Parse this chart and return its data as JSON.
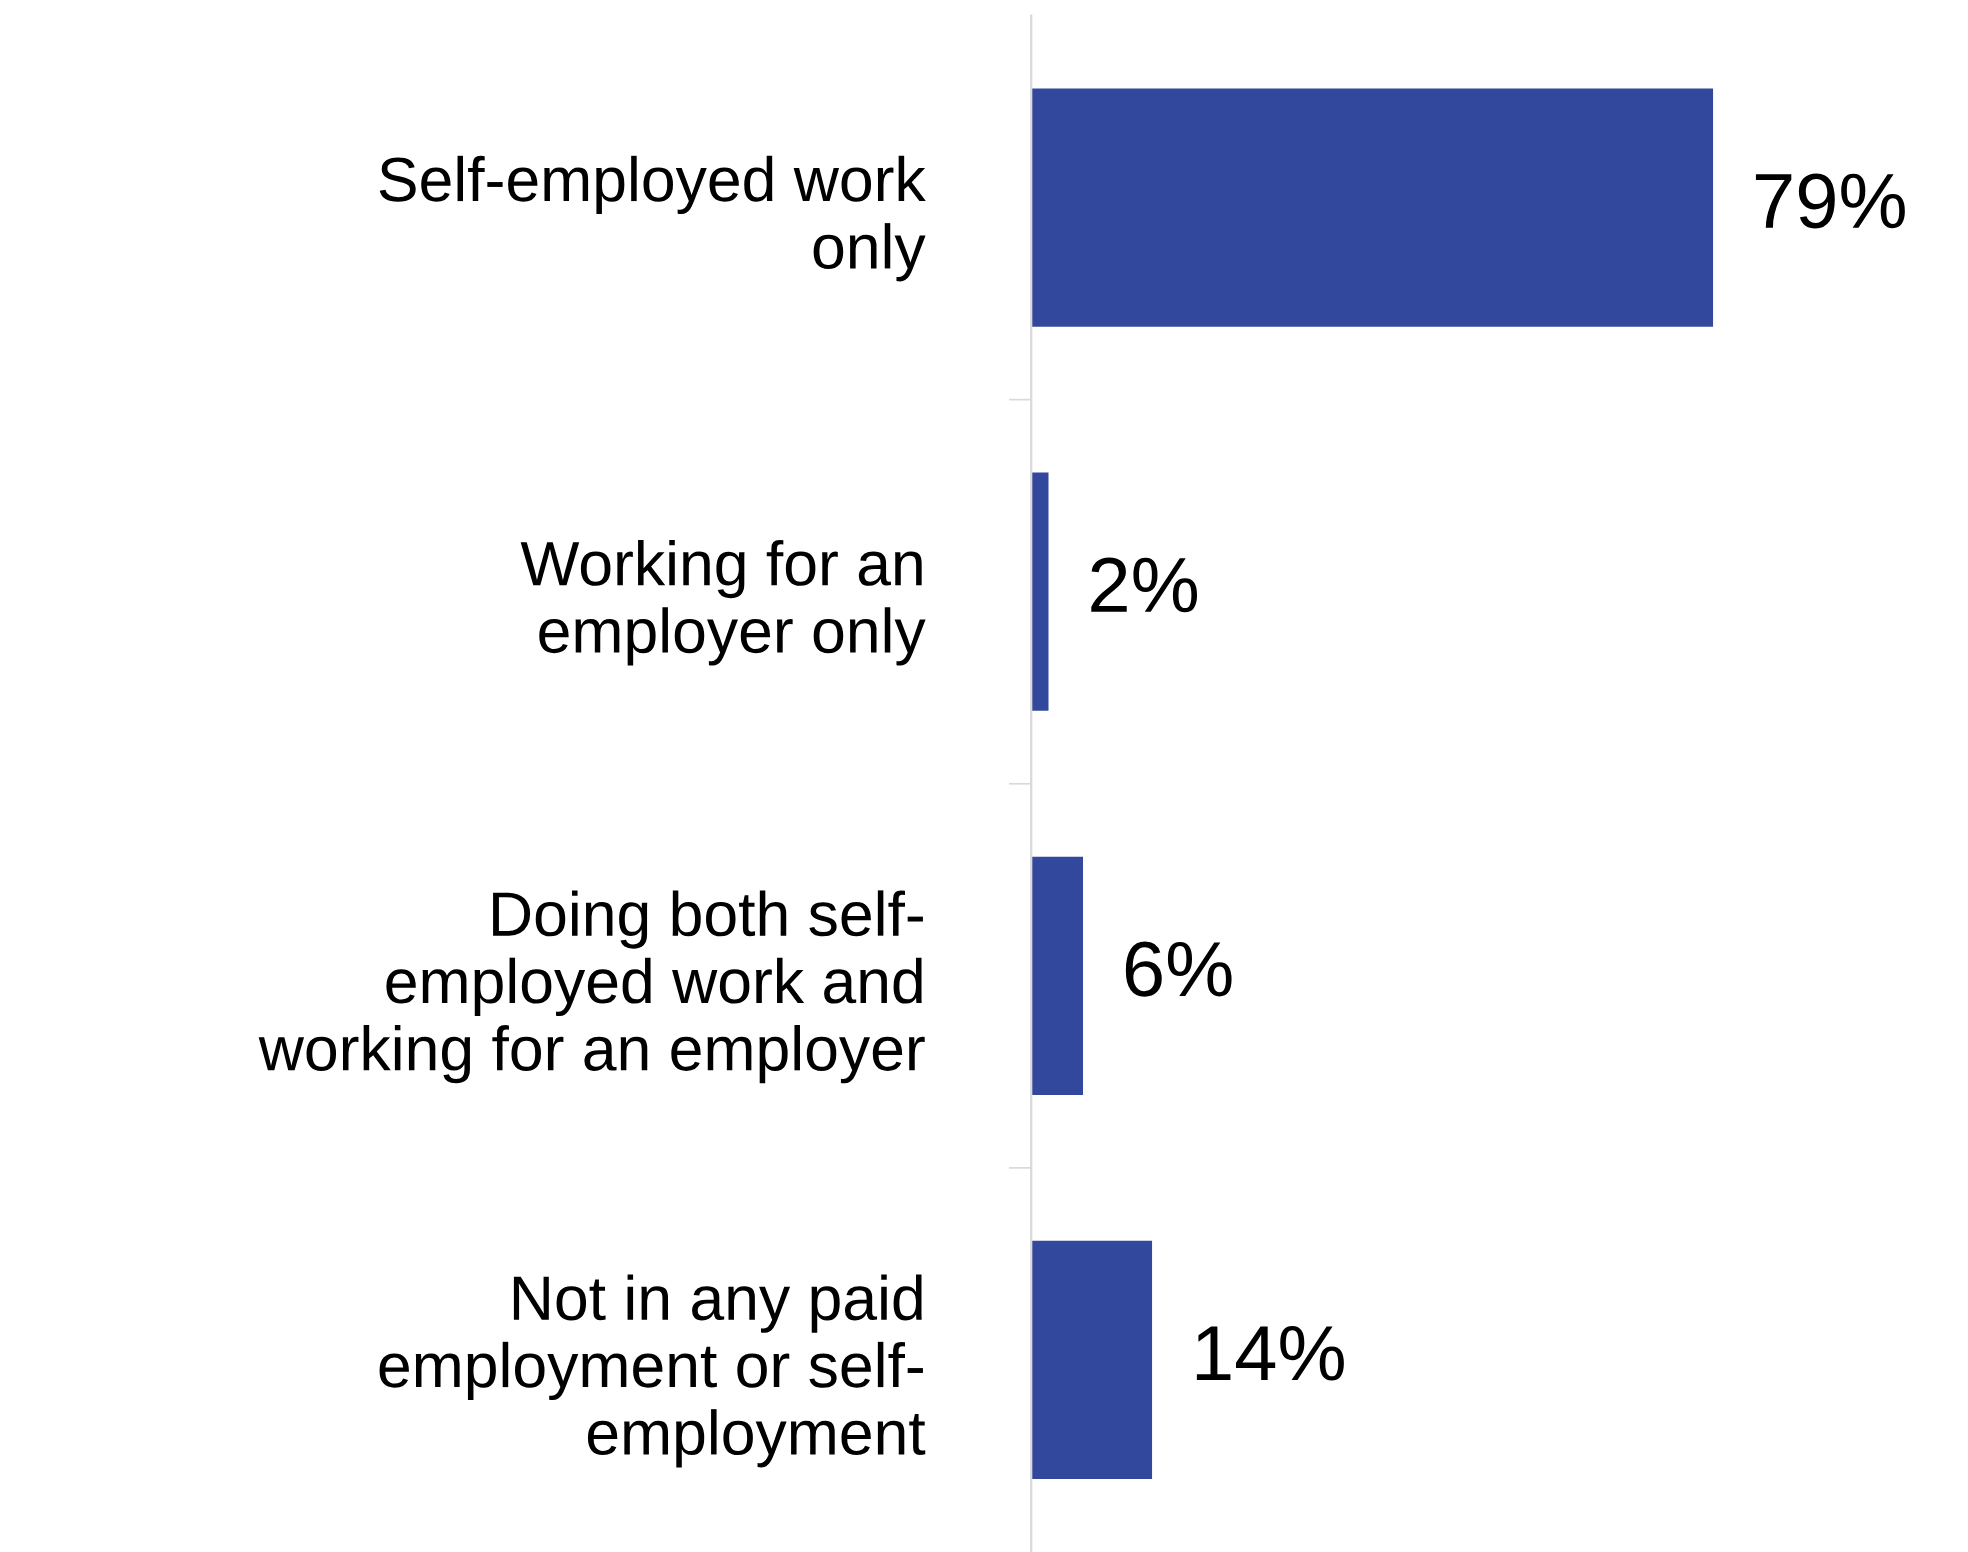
{
  "chart_data": {
    "type": "bar",
    "orientation": "horizontal",
    "categories": [
      "Self-employed work\nonly",
      "Working for an\nemployer only",
      "Doing both self-\nemployed work and\nworking for an employer",
      "Not in any paid\nemployment or self-\nemployment"
    ],
    "values": [
      79,
      2,
      6,
      14
    ],
    "value_labels": [
      "79%",
      "2%",
      "6%",
      "14%"
    ],
    "color": "#32489c",
    "tick_labels": "y",
    "grid": false,
    "legend": false
  }
}
